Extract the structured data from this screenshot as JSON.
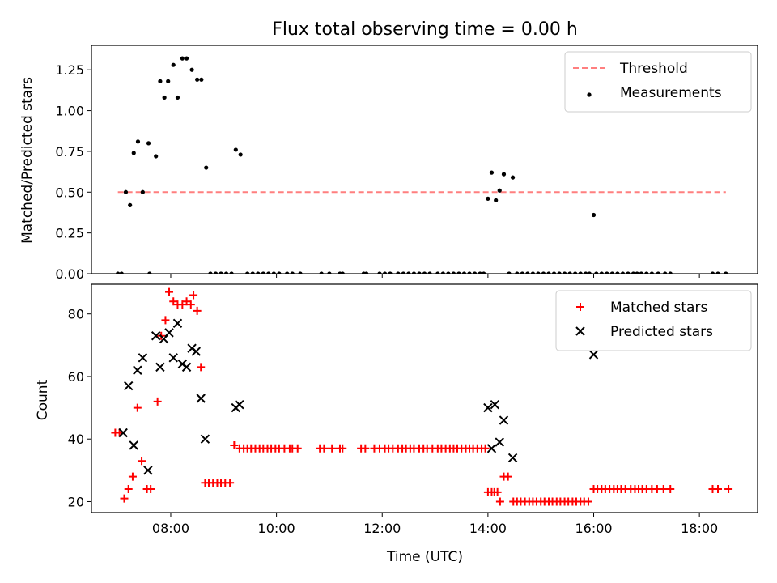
{
  "title": "Flux total observing time = 0.00 h",
  "colors": {
    "threshold": "#ff7f7f",
    "measurements": "#000000",
    "matched": "#ff0000",
    "predicted": "#000000"
  },
  "chart_data": [
    {
      "type": "scatter",
      "title": "Flux total observing time = 0.00 h",
      "xlabel": "",
      "ylabel": "Matched/Predicted stars",
      "xlim": [
        6.5,
        19.1
      ],
      "ylim": [
        0,
        1.4
      ],
      "yticks": [
        "0.00",
        "0.25",
        "0.50",
        "0.75",
        "1.00",
        "1.25"
      ],
      "legend": [
        "Threshold",
        "Measurements"
      ],
      "legend_position": "top-right",
      "threshold": {
        "name": "Threshold",
        "y": 0.5,
        "x": [
          7.0,
          18.5
        ]
      },
      "series": [
        {
          "name": "Measurements",
          "points": [
            [
              7.0,
              0
            ],
            [
              7.07,
              0
            ],
            [
              7.15,
              0.5
            ],
            [
              7.23,
              0.42
            ],
            [
              7.3,
              0.74
            ],
            [
              7.38,
              0.81
            ],
            [
              7.47,
              0.5
            ],
            [
              7.58,
              0.8
            ],
            [
              7.6,
              0
            ],
            [
              7.72,
              0.72
            ],
            [
              7.8,
              1.18
            ],
            [
              7.88,
              1.08
            ],
            [
              7.95,
              1.18
            ],
            [
              8.05,
              1.28
            ],
            [
              8.13,
              1.08
            ],
            [
              8.22,
              1.32
            ],
            [
              8.3,
              1.32
            ],
            [
              8.4,
              1.25
            ],
            [
              8.5,
              1.19
            ],
            [
              8.58,
              1.19
            ],
            [
              8.67,
              0.65
            ],
            [
              8.75,
              0
            ],
            [
              8.85,
              0
            ],
            [
              8.95,
              0
            ],
            [
              9.05,
              0
            ],
            [
              9.15,
              0
            ],
            [
              9.23,
              0.76
            ],
            [
              9.32,
              0.73
            ],
            [
              9.45,
              0
            ],
            [
              9.55,
              0
            ],
            [
              9.65,
              0
            ],
            [
              9.75,
              0
            ],
            [
              9.85,
              0
            ],
            [
              9.95,
              0
            ],
            [
              10.05,
              0
            ],
            [
              10.2,
              0
            ],
            [
              10.3,
              0
            ],
            [
              10.45,
              0
            ],
            [
              10.85,
              0
            ],
            [
              11.0,
              0
            ],
            [
              11.2,
              0
            ],
            [
              11.25,
              0
            ],
            [
              11.65,
              0
            ],
            [
              11.7,
              0
            ],
            [
              11.95,
              0
            ],
            [
              12.05,
              0
            ],
            [
              12.15,
              0
            ],
            [
              12.3,
              0
            ],
            [
              12.4,
              0
            ],
            [
              12.5,
              0
            ],
            [
              12.6,
              0
            ],
            [
              12.7,
              0
            ],
            [
              12.8,
              0
            ],
            [
              12.9,
              0
            ],
            [
              13.05,
              0
            ],
            [
              13.15,
              0
            ],
            [
              13.25,
              0
            ],
            [
              13.35,
              0
            ],
            [
              13.45,
              0
            ],
            [
              13.55,
              0
            ],
            [
              13.65,
              0
            ],
            [
              13.75,
              0
            ],
            [
              13.85,
              0
            ],
            [
              13.92,
              0
            ],
            [
              14.0,
              0.46
            ],
            [
              14.07,
              0.62
            ],
            [
              14.15,
              0.45
            ],
            [
              14.22,
              0.51
            ],
            [
              14.3,
              0.61
            ],
            [
              14.4,
              0
            ],
            [
              14.47,
              0.59
            ],
            [
              14.55,
              0
            ],
            [
              14.65,
              0
            ],
            [
              14.75,
              0
            ],
            [
              14.85,
              0
            ],
            [
              14.95,
              0
            ],
            [
              15.05,
              0
            ],
            [
              15.15,
              0
            ],
            [
              15.25,
              0
            ],
            [
              15.35,
              0
            ],
            [
              15.45,
              0
            ],
            [
              15.55,
              0
            ],
            [
              15.65,
              0
            ],
            [
              15.75,
              0
            ],
            [
              15.85,
              0
            ],
            [
              15.92,
              0
            ],
            [
              16.0,
              0.36
            ],
            [
              16.05,
              0
            ],
            [
              16.15,
              0
            ],
            [
              16.25,
              0
            ],
            [
              16.35,
              0
            ],
            [
              16.45,
              0
            ],
            [
              16.55,
              0
            ],
            [
              16.65,
              0
            ],
            [
              16.75,
              0
            ],
            [
              16.82,
              0
            ],
            [
              16.9,
              0
            ],
            [
              17.0,
              0
            ],
            [
              17.1,
              0
            ],
            [
              17.22,
              0
            ],
            [
              17.35,
              0
            ],
            [
              17.45,
              0
            ],
            [
              18.25,
              0
            ],
            [
              18.35,
              0
            ],
            [
              18.5,
              0
            ]
          ]
        }
      ]
    },
    {
      "type": "scatter",
      "title": "",
      "xlabel": "Time (UTC)",
      "ylabel": "Count",
      "xlim": [
        6.5,
        19.1
      ],
      "ylim": [
        16.5,
        89.5
      ],
      "yticks": [
        "20",
        "40",
        "60",
        "80"
      ],
      "xticks": [
        "08:00",
        "10:00",
        "12:00",
        "14:00",
        "16:00",
        "18:00"
      ],
      "legend": [
        "Matched stars",
        "Predicted stars"
      ],
      "legend_position": "top-right",
      "series": [
        {
          "name": "Matched stars",
          "marker": "+",
          "points": [
            [
              6.95,
              42
            ],
            [
              7.03,
              42
            ],
            [
              7.12,
              21
            ],
            [
              7.2,
              24
            ],
            [
              7.28,
              28
            ],
            [
              7.37,
              50
            ],
            [
              7.45,
              33
            ],
            [
              7.55,
              24
            ],
            [
              7.62,
              24
            ],
            [
              7.75,
              52
            ],
            [
              7.82,
              73
            ],
            [
              7.9,
              78
            ],
            [
              7.97,
              87
            ],
            [
              8.05,
              84
            ],
            [
              8.13,
              83
            ],
            [
              8.22,
              83
            ],
            [
              8.3,
              84
            ],
            [
              8.38,
              83
            ],
            [
              8.43,
              86
            ],
            [
              8.5,
              81
            ],
            [
              8.57,
              63
            ],
            [
              8.65,
              26
            ],
            [
              8.72,
              26
            ],
            [
              8.8,
              26
            ],
            [
              8.88,
              26
            ],
            [
              8.95,
              26
            ],
            [
              9.03,
              26
            ],
            [
              9.12,
              26
            ],
            [
              9.2,
              38
            ],
            [
              9.3,
              37
            ],
            [
              9.38,
              37
            ],
            [
              9.45,
              37
            ],
            [
              9.52,
              37
            ],
            [
              9.6,
              37
            ],
            [
              9.68,
              37
            ],
            [
              9.75,
              37
            ],
            [
              9.83,
              37
            ],
            [
              9.9,
              37
            ],
            [
              9.98,
              37
            ],
            [
              10.05,
              37
            ],
            [
              10.15,
              37
            ],
            [
              10.25,
              37
            ],
            [
              10.3,
              37
            ],
            [
              10.4,
              37
            ],
            [
              10.82,
              37
            ],
            [
              10.9,
              37
            ],
            [
              11.05,
              37
            ],
            [
              11.2,
              37
            ],
            [
              11.25,
              37
            ],
            [
              11.6,
              37
            ],
            [
              11.68,
              37
            ],
            [
              11.85,
              37
            ],
            [
              11.95,
              37
            ],
            [
              12.05,
              37
            ],
            [
              12.12,
              37
            ],
            [
              12.2,
              37
            ],
            [
              12.3,
              37
            ],
            [
              12.38,
              37
            ],
            [
              12.45,
              37
            ],
            [
              12.53,
              37
            ],
            [
              12.6,
              37
            ],
            [
              12.7,
              37
            ],
            [
              12.78,
              37
            ],
            [
              12.85,
              37
            ],
            [
              12.95,
              37
            ],
            [
              13.05,
              37
            ],
            [
              13.12,
              37
            ],
            [
              13.2,
              37
            ],
            [
              13.28,
              37
            ],
            [
              13.35,
              37
            ],
            [
              13.42,
              37
            ],
            [
              13.5,
              37
            ],
            [
              13.58,
              37
            ],
            [
              13.65,
              37
            ],
            [
              13.72,
              37
            ],
            [
              13.8,
              37
            ],
            [
              13.88,
              37
            ],
            [
              13.95,
              37
            ],
            [
              14.0,
              23
            ],
            [
              14.07,
              23
            ],
            [
              14.12,
              23
            ],
            [
              14.18,
              23
            ],
            [
              14.23,
              20
            ],
            [
              14.3,
              28
            ],
            [
              14.38,
              28
            ],
            [
              14.48,
              20
            ],
            [
              14.55,
              20
            ],
            [
              14.62,
              20
            ],
            [
              14.7,
              20
            ],
            [
              14.78,
              20
            ],
            [
              14.85,
              20
            ],
            [
              14.92,
              20
            ],
            [
              15.0,
              20
            ],
            [
              15.07,
              20
            ],
            [
              15.15,
              20
            ],
            [
              15.22,
              20
            ],
            [
              15.3,
              20
            ],
            [
              15.37,
              20
            ],
            [
              15.45,
              20
            ],
            [
              15.52,
              20
            ],
            [
              15.6,
              20
            ],
            [
              15.67,
              20
            ],
            [
              15.75,
              20
            ],
            [
              15.82,
              20
            ],
            [
              15.9,
              20
            ],
            [
              16.0,
              24
            ],
            [
              16.07,
              24
            ],
            [
              16.15,
              24
            ],
            [
              16.22,
              24
            ],
            [
              16.3,
              24
            ],
            [
              16.38,
              24
            ],
            [
              16.45,
              24
            ],
            [
              16.52,
              24
            ],
            [
              16.6,
              24
            ],
            [
              16.7,
              24
            ],
            [
              16.78,
              24
            ],
            [
              16.85,
              24
            ],
            [
              16.92,
              24
            ],
            [
              17.0,
              24
            ],
            [
              17.1,
              24
            ],
            [
              17.2,
              24
            ],
            [
              17.32,
              24
            ],
            [
              17.45,
              24
            ],
            [
              18.25,
              24
            ],
            [
              18.35,
              24
            ],
            [
              18.55,
              24
            ]
          ]
        },
        {
          "name": "Predicted stars",
          "marker": "x",
          "points": [
            [
              7.1,
              42
            ],
            [
              7.2,
              57
            ],
            [
              7.3,
              38
            ],
            [
              7.37,
              62
            ],
            [
              7.47,
              66
            ],
            [
              7.57,
              30
            ],
            [
              7.72,
              73
            ],
            [
              7.8,
              63
            ],
            [
              7.87,
              72
            ],
            [
              7.97,
              74
            ],
            [
              8.05,
              66
            ],
            [
              8.13,
              77
            ],
            [
              8.22,
              64
            ],
            [
              8.3,
              63
            ],
            [
              8.4,
              69
            ],
            [
              8.48,
              68
            ],
            [
              8.57,
              53
            ],
            [
              8.65,
              40
            ],
            [
              9.23,
              50
            ],
            [
              9.3,
              51
            ],
            [
              14.0,
              50
            ],
            [
              14.07,
              37
            ],
            [
              14.13,
              51
            ],
            [
              14.22,
              39
            ],
            [
              14.3,
              46
            ],
            [
              14.47,
              34
            ],
            [
              16.0,
              67
            ]
          ]
        }
      ]
    }
  ]
}
